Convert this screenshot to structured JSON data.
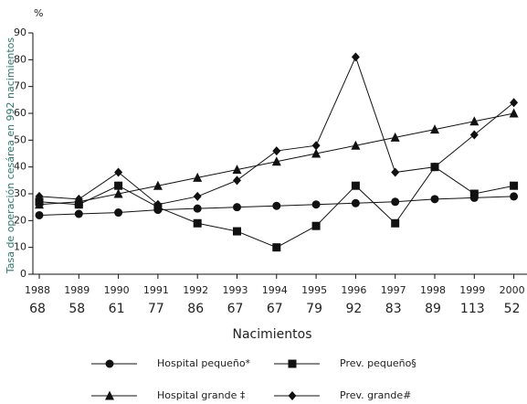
{
  "chart_data": {
    "type": "line",
    "y_unit": "%",
    "ylabel": "Tasa de operación cesárea en 992 nacimientos",
    "xlabel": "Nacimientos",
    "categories": [
      "1988",
      "1989",
      "1990",
      "1991",
      "1992",
      "1993",
      "1994",
      "1995",
      "1996",
      "1997",
      "1998",
      "1999",
      "2000"
    ],
    "births": [
      "68",
      "58",
      "61",
      "77",
      "86",
      "67",
      "67",
      "79",
      "92",
      "83",
      "89",
      "113",
      "52"
    ],
    "ylim": [
      0,
      90
    ],
    "yticks": [
      0,
      10,
      20,
      30,
      40,
      50,
      60,
      70,
      80,
      90
    ],
    "grid": false,
    "legend": "bottom",
    "series": [
      {
        "name": "Hospital pequeño*",
        "color": "#111111",
        "marker": "circle",
        "values": [
          22,
          22.5,
          23,
          24,
          24.5,
          25,
          25.5,
          26,
          26.5,
          27,
          28,
          28.5,
          29
        ]
      },
      {
        "name": "Prev. pequeño§",
        "color": "#111111",
        "marker": "square",
        "values": [
          27,
          26,
          33,
          25,
          19,
          16,
          10,
          18,
          33,
          19,
          40,
          30,
          33
        ]
      },
      {
        "name": "Hospital grande ‡",
        "color": "#111111",
        "marker": "triangle",
        "values": [
          26,
          27,
          30,
          33,
          36,
          39,
          42,
          45,
          48,
          51,
          54,
          57,
          60
        ]
      },
      {
        "name": "Prev. grande#",
        "color": "#111111",
        "marker": "diamond",
        "values": [
          29,
          28,
          38,
          26,
          29,
          35,
          46,
          48,
          81,
          38,
          40,
          52,
          64
        ]
      }
    ]
  }
}
